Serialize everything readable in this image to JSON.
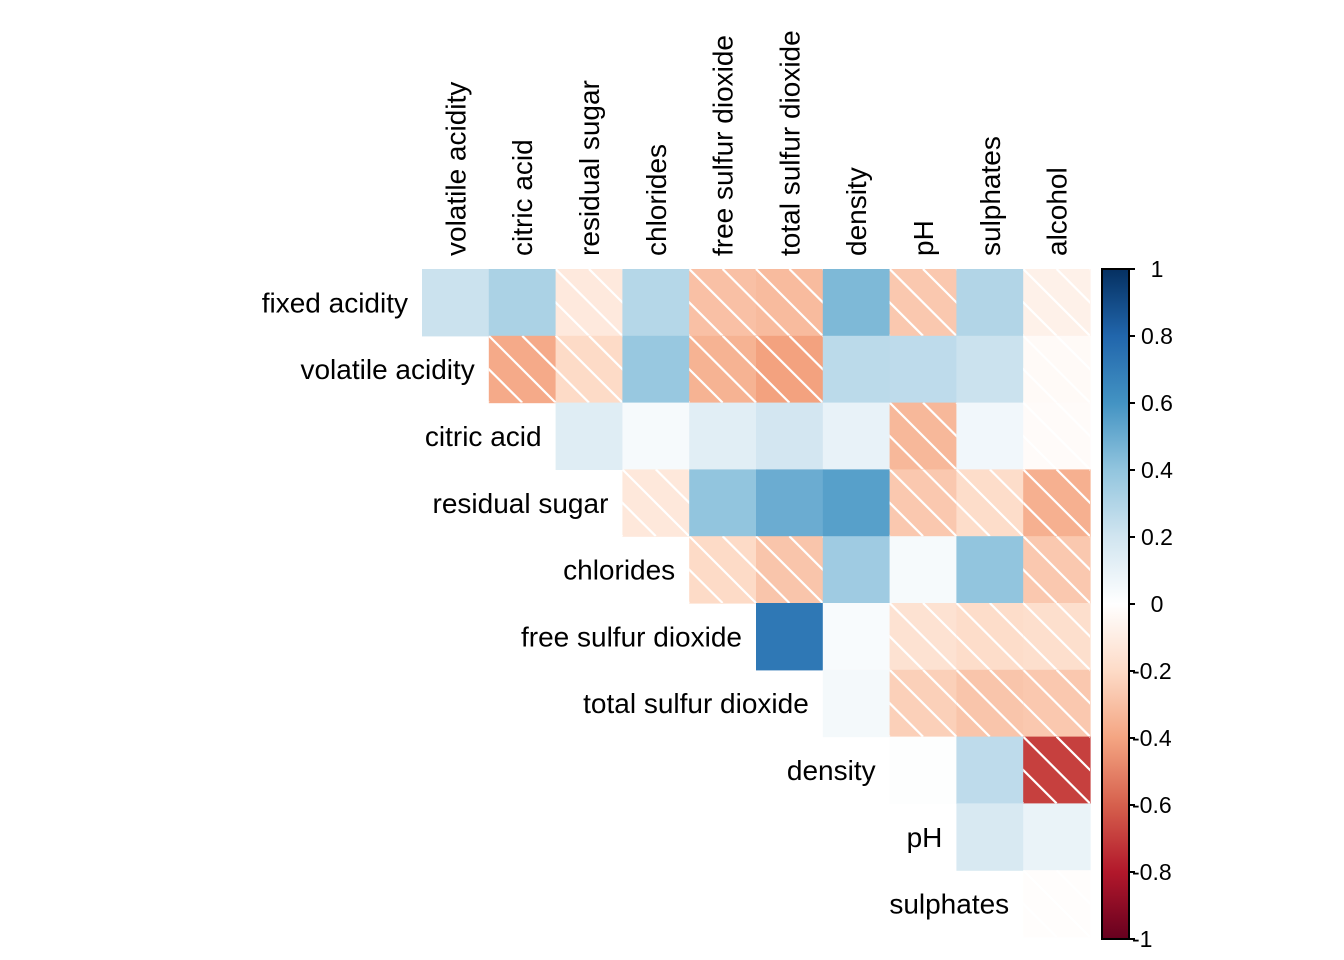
{
  "chart_data": {
    "type": "heatmap",
    "title": "",
    "layout": "upper-triangle",
    "row_labels": [
      "fixed acidity",
      "volatile acidity",
      "citric acid",
      "residual sugar",
      "chlorides",
      "free sulfur dioxide",
      "total sulfur dioxide",
      "density",
      "pH",
      "sulphates"
    ],
    "col_labels": [
      "volatile acidity",
      "citric acid",
      "residual sugar",
      "chlorides",
      "free sulfur dioxide",
      "total sulfur dioxide",
      "density",
      "pH",
      "sulphates",
      "alcohol"
    ],
    "values": [
      [
        0.22,
        0.32,
        -0.12,
        0.29,
        -0.3,
        -0.32,
        0.45,
        -0.27,
        0.3,
        -0.08
      ],
      [
        null,
        -0.38,
        -0.2,
        0.38,
        -0.35,
        -0.41,
        0.27,
        0.26,
        0.22,
        -0.03
      ],
      [
        null,
        null,
        0.14,
        0.04,
        0.13,
        0.19,
        0.1,
        -0.33,
        0.06,
        -0.02
      ],
      [
        null,
        null,
        null,
        -0.13,
        0.4,
        0.5,
        0.55,
        -0.27,
        -0.19,
        -0.36
      ],
      [
        null,
        null,
        null,
        null,
        -0.2,
        -0.28,
        0.36,
        0.04,
        0.4,
        -0.27
      ],
      [
        null,
        null,
        null,
        null,
        null,
        0.72,
        0.03,
        -0.16,
        -0.19,
        -0.18
      ],
      [
        null,
        null,
        null,
        null,
        null,
        null,
        0.05,
        -0.24,
        -0.28,
        -0.27
      ],
      [
        null,
        null,
        null,
        null,
        null,
        null,
        null,
        0.01,
        0.26,
        -0.69
      ],
      [
        null,
        null,
        null,
        null,
        null,
        null,
        null,
        null,
        0.17,
        0.09
      ],
      [
        null,
        null,
        null,
        null,
        null,
        null,
        null,
        null,
        null,
        -0.01
      ]
    ],
    "hatch_negative": true,
    "colorbar": {
      "range": [
        -1,
        1
      ],
      "ticks": [
        "1",
        "0.8",
        "0.6",
        "0.4",
        "0.2",
        "0",
        "-0.2",
        "-0.4",
        "-0.6",
        "-0.8",
        "-1"
      ],
      "tick_values": [
        1,
        0.8,
        0.6,
        0.4,
        0.2,
        0,
        -0.2,
        -0.4,
        -0.6,
        -0.8,
        -1
      ],
      "placement": "right"
    },
    "colormap": {
      "name": "RdBu",
      "stops": [
        "#67001f",
        "#b2182b",
        "#d6604d",
        "#f4a582",
        "#fddbc7",
        "#ffffff",
        "#d1e5f0",
        "#92c5de",
        "#4393c3",
        "#2166ac",
        "#053061"
      ]
    }
  }
}
